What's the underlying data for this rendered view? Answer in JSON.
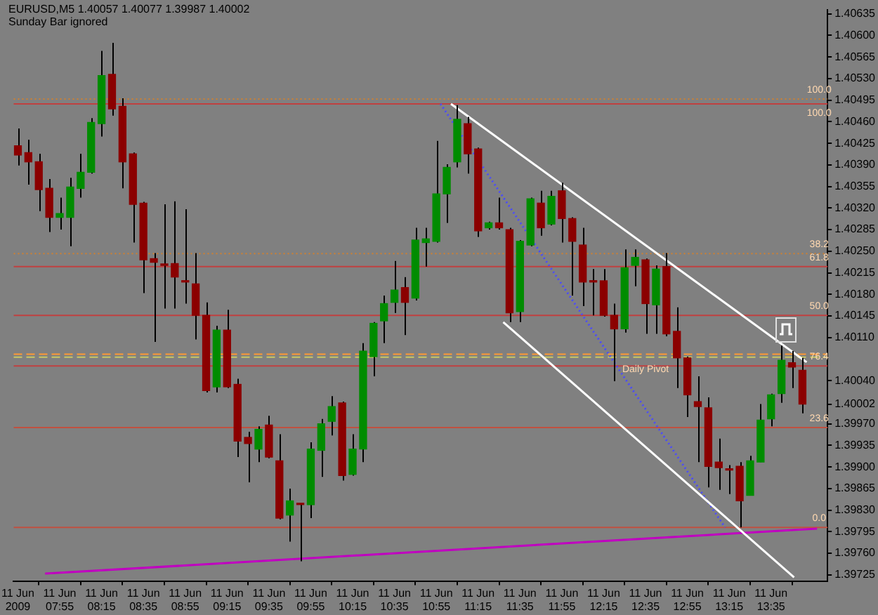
{
  "chart_data": {
    "type": "candlestick",
    "title": "EURUSD,M5  1.40057 1.40077 1.39987 1.40002",
    "subtitle": "Sunday Bar ignored",
    "x": [
      "2009-06-11T07:35",
      "2009-06-11T07:40",
      "2009-06-11T07:45",
      "2009-06-11T07:50",
      "2009-06-11T07:55",
      "2009-06-11T08:00",
      "2009-06-11T08:05",
      "2009-06-11T08:10",
      "2009-06-11T08:15",
      "2009-06-11T08:20",
      "2009-06-11T08:25",
      "2009-06-11T08:30",
      "2009-06-11T08:35",
      "2009-06-11T08:40",
      "2009-06-11T08:45",
      "2009-06-11T08:50",
      "2009-06-11T08:55",
      "2009-06-11T09:00",
      "2009-06-11T09:05",
      "2009-06-11T09:10",
      "2009-06-11T09:15",
      "2009-06-11T09:20",
      "2009-06-11T09:25",
      "2009-06-11T09:30",
      "2009-06-11T09:35",
      "2009-06-11T09:40",
      "2009-06-11T09:45",
      "2009-06-11T09:50",
      "2009-06-11T09:55",
      "2009-06-11T10:00",
      "2009-06-11T10:05",
      "2009-06-11T10:10",
      "2009-06-11T10:15",
      "2009-06-11T10:20",
      "2009-06-11T10:25",
      "2009-06-11T10:30",
      "2009-06-11T10:35",
      "2009-06-11T10:40",
      "2009-06-11T10:45",
      "2009-06-11T10:50",
      "2009-06-11T10:55",
      "2009-06-11T11:00",
      "2009-06-11T11:05",
      "2009-06-11T11:10",
      "2009-06-11T11:15",
      "2009-06-11T11:20",
      "2009-06-11T11:25",
      "2009-06-11T11:30",
      "2009-06-11T11:35",
      "2009-06-11T11:40",
      "2009-06-11T11:45",
      "2009-06-11T11:50",
      "2009-06-11T11:55",
      "2009-06-11T12:00",
      "2009-06-11T12:05",
      "2009-06-11T12:10",
      "2009-06-11T12:15",
      "2009-06-11T12:20",
      "2009-06-11T12:25",
      "2009-06-11T12:30",
      "2009-06-11T12:35",
      "2009-06-11T12:40",
      "2009-06-11T12:45",
      "2009-06-11T12:50",
      "2009-06-11T12:55",
      "2009-06-11T13:00",
      "2009-06-11T13:05",
      "2009-06-11T13:10",
      "2009-06-11T13:15",
      "2009-06-11T13:20",
      "2009-06-11T13:25",
      "2009-06-11T13:30",
      "2009-06-11T13:35",
      "2009-06-11T13:40",
      "2009-06-11T13:45",
      "2009-06-11T13:50"
    ],
    "ohlc": [
      [
        1.40421,
        1.40449,
        1.40389,
        1.40406
      ],
      [
        1.4041,
        1.40431,
        1.40358,
        1.40395
      ],
      [
        1.40395,
        1.40408,
        1.40315,
        1.4035
      ],
      [
        1.40352,
        1.40367,
        1.40281,
        1.40305
      ],
      [
        1.40305,
        1.40337,
        1.40285,
        1.40311
      ],
      [
        1.40305,
        1.40369,
        1.40258,
        1.40354
      ],
      [
        1.40352,
        1.40408,
        1.40337,
        1.40378
      ],
      [
        1.40378,
        1.40466,
        1.40376,
        1.40459
      ],
      [
        1.40457,
        1.40575,
        1.40436,
        1.40535
      ],
      [
        1.40537,
        1.40588,
        1.4047,
        1.40481
      ],
      [
        1.40485,
        1.40498,
        1.40352,
        1.40395
      ],
      [
        1.40408,
        1.4041,
        1.40264,
        1.40326
      ],
      [
        1.40328,
        1.4033,
        1.40182,
        1.40236
      ],
      [
        1.40238,
        1.40247,
        1.40103,
        1.40232
      ],
      [
        1.40227,
        1.40326,
        1.40157,
        1.40227
      ],
      [
        1.4023,
        1.40331,
        1.40157,
        1.40208
      ],
      [
        1.402,
        1.40318,
        1.40165,
        1.402
      ],
      [
        1.40197,
        1.40247,
        1.40107,
        1.40146
      ],
      [
        1.40146,
        1.40167,
        1.40021,
        1.40024
      ],
      [
        1.4003,
        1.40129,
        1.40021,
        1.40122
      ],
      [
        1.40122,
        1.40155,
        1.40028,
        1.4003
      ],
      [
        1.40034,
        1.40043,
        1.39916,
        1.39942
      ],
      [
        1.39948,
        1.39957,
        1.39875,
        1.39938
      ],
      [
        1.39929,
        1.39966,
        1.39908,
        1.39961
      ],
      [
        1.39968,
        1.39983,
        1.39914,
        1.39916
      ],
      [
        1.3991,
        1.39953,
        1.39815,
        1.39817
      ],
      [
        1.39822,
        1.39865,
        1.39779,
        1.39845
      ],
      [
        1.39839,
        1.39841,
        1.39747,
        1.39839
      ],
      [
        1.39839,
        1.3994,
        1.39817,
        1.39929
      ],
      [
        1.39927,
        1.39978,
        1.39884,
        1.3997
      ],
      [
        1.39974,
        1.40015,
        1.39951,
        1.39998
      ],
      [
        1.40004,
        1.40006,
        1.39878,
        1.39886
      ],
      [
        1.39888,
        1.39953,
        1.39886,
        1.39929
      ],
      [
        1.39929,
        1.40101,
        1.39908,
        1.40088
      ],
      [
        1.40079,
        1.40135,
        1.40047,
        1.40133
      ],
      [
        1.40137,
        1.40178,
        1.40101,
        1.40165
      ],
      [
        1.40167,
        1.40234,
        1.4015,
        1.40187
      ],
      [
        1.40191,
        1.40208,
        1.40114,
        1.40167
      ],
      [
        1.40174,
        1.40288,
        1.4017,
        1.40268
      ],
      [
        1.40264,
        1.40288,
        1.40225,
        1.4027
      ],
      [
        1.40266,
        1.40429,
        1.40264,
        1.40343
      ],
      [
        1.40343,
        1.40391,
        1.40296,
        1.40386
      ],
      [
        1.40395,
        1.40487,
        1.40386,
        1.40464
      ],
      [
        1.40457,
        1.40468,
        1.40376,
        1.40408
      ],
      [
        1.40416,
        1.40418,
        1.40273,
        1.40283
      ],
      [
        1.40288,
        1.40298,
        1.40285,
        1.40296
      ],
      [
        1.40296,
        1.40337,
        1.40285,
        1.40288
      ],
      [
        1.40285,
        1.40288,
        1.40135,
        1.4015
      ],
      [
        1.40152,
        1.40268,
        1.40135,
        1.40266
      ],
      [
        1.4026,
        1.40337,
        1.40258,
        1.40335
      ],
      [
        1.40328,
        1.40348,
        1.40275,
        1.40288
      ],
      [
        1.40294,
        1.40348,
        1.40292,
        1.40339
      ],
      [
        1.40348,
        1.40361,
        1.40264,
        1.40303
      ],
      [
        1.40303,
        1.40305,
        1.40178,
        1.40266
      ],
      [
        1.4026,
        1.40288,
        1.40161,
        1.402
      ],
      [
        1.402,
        1.40221,
        1.40146,
        1.402
      ],
      [
        1.40202,
        1.40221,
        1.40144,
        1.40146
      ],
      [
        1.40146,
        1.40165,
        1.40039,
        1.40124
      ],
      [
        1.40124,
        1.40253,
        1.40118,
        1.40223
      ],
      [
        1.40227,
        1.40253,
        1.40193,
        1.4024
      ],
      [
        1.40236,
        1.40238,
        1.40116,
        1.40165
      ],
      [
        1.40163,
        1.40227,
        1.40116,
        1.40221
      ],
      [
        1.40225,
        1.40247,
        1.40112,
        1.40116
      ],
      [
        1.4012,
        1.40159,
        1.40028,
        1.40077
      ],
      [
        1.40077,
        1.40079,
        1.39981,
        1.40017
      ],
      [
        1.40006,
        1.40047,
        1.39908,
        1.39998
      ],
      [
        1.39996,
        1.40013,
        1.39867,
        1.39901
      ],
      [
        1.39908,
        1.39946,
        1.39863,
        1.39899
      ],
      [
        1.39895,
        1.39903,
        1.39856,
        1.39895
      ],
      [
        1.39901,
        1.39908,
        1.39802,
        1.39845
      ],
      [
        1.39854,
        1.39918,
        1.39854,
        1.3991
      ],
      [
        1.39908,
        1.40002,
        1.39908,
        1.39976
      ],
      [
        1.39978,
        1.40019,
        1.39966,
        1.40017
      ],
      [
        1.40019,
        1.40097,
        1.40004,
        1.40073
      ],
      [
        1.40069,
        1.40088,
        1.40028,
        1.40062
      ],
      [
        1.40057,
        1.40077,
        1.39987,
        1.40002
      ]
    ],
    "colors": [
      "#8b0000",
      "#8b0000",
      "#8b0000",
      "#8b0000",
      "#008c00",
      "#008c00",
      "#008c00",
      "#008c00",
      "#008c00",
      "#8b0000",
      "#8b0000",
      "#8b0000",
      "#8b0000",
      "#8b0000",
      "#8b0000",
      "#8b0000",
      "#8b0000",
      "#8b0000",
      "#8b0000",
      "#008c00",
      "#8b0000",
      "#8b0000",
      "#8b0000",
      "#008c00",
      "#8b0000",
      "#8b0000",
      "#008c00",
      "#8b0000",
      "#008c00",
      "#008c00",
      "#008c00",
      "#8b0000",
      "#008c00",
      "#008c00",
      "#008c00",
      "#008c00",
      "#008c00",
      "#8b0000",
      "#008c00",
      "#008c00",
      "#008c00",
      "#008c00",
      "#008c00",
      "#8b0000",
      "#8b0000",
      "#008c00",
      "#8b0000",
      "#8b0000",
      "#008c00",
      "#008c00",
      "#8b0000",
      "#008c00",
      "#8b0000",
      "#8b0000",
      "#8b0000",
      "#8b0000",
      "#8b0000",
      "#8b0000",
      "#008c00",
      "#008c00",
      "#8b0000",
      "#008c00",
      "#8b0000",
      "#8b0000",
      "#8b0000",
      "#8b0000",
      "#8b0000",
      "#8b0000",
      "#8b0000",
      "#8b0000",
      "#008c00",
      "#008c00",
      "#008c00",
      "#008c00",
      "#8b0000",
      "#8b0000"
    ],
    "series": [
      {
        "type": "line",
        "x": [
          "2009-06-11T11:02",
          "2009-06-11T13:52"
        ],
        "values": [
          1.40489,
          1.4007
        ],
        "color": "#ffffff"
      },
      {
        "type": "line",
        "x": [
          "2009-06-11T11:27",
          "2009-06-11T13:46"
        ],
        "values": [
          1.40135,
          1.39721
        ],
        "color": "#ffffff"
      },
      {
        "type": "line",
        "x": [
          "2009-06-11T07:48",
          "2009-06-11T13:57"
        ],
        "values": [
          1.39727,
          1.398
        ],
        "color": "#c000c0"
      },
      {
        "type": "line",
        "x": [
          "2009-06-11T10:57",
          "2009-06-11T13:13"
        ],
        "values": [
          1.40489,
          1.39802
        ],
        "color": "#4a4aff",
        "line_style": "dotted"
      }
    ],
    "xlim": [
      "2009-06-11T07:33",
      "2009-06-11T14:02"
    ],
    "xticks": [
      {
        "value": "2009-06-11T07:35",
        "label": "11 Jun 2009"
      },
      {
        "value": "2009-06-11T07:55",
        "label": "11 Jun 07:55"
      },
      {
        "value": "2009-06-11T08:15",
        "label": "11 Jun 08:15"
      },
      {
        "value": "2009-06-11T08:35",
        "label": "11 Jun 08:35"
      },
      {
        "value": "2009-06-11T08:55",
        "label": "11 Jun 08:55"
      },
      {
        "value": "2009-06-11T09:15",
        "label": "11 Jun 09:15"
      },
      {
        "value": "2009-06-11T09:35",
        "label": "11 Jun 09:35"
      },
      {
        "value": "2009-06-11T09:55",
        "label": "11 Jun 09:55"
      },
      {
        "value": "2009-06-11T10:15",
        "label": "11 Jun 10:15"
      },
      {
        "value": "2009-06-11T10:35",
        "label": "11 Jun 10:35"
      },
      {
        "value": "2009-06-11T10:55",
        "label": "11 Jun 10:55"
      },
      {
        "value": "2009-06-11T11:15",
        "label": "11 Jun 11:15"
      },
      {
        "value": "2009-06-11T11:35",
        "label": "11 Jun 11:35"
      },
      {
        "value": "2009-06-11T11:55",
        "label": "11 Jun 11:55"
      },
      {
        "value": "2009-06-11T12:15",
        "label": "11 Jun 12:15"
      },
      {
        "value": "2009-06-11T12:35",
        "label": "11 Jun 12:35"
      },
      {
        "value": "2009-06-11T12:55",
        "label": "11 Jun 12:55"
      },
      {
        "value": "2009-06-11T13:15",
        "label": "11 Jun 13:15"
      },
      {
        "value": "2009-06-11T13:35",
        "label": "11 Jun 13:35"
      }
    ],
    "ylim": [
      1.39715,
      1.40642
    ],
    "yticks": [
      1.39725,
      {
        "value": 1.3976,
        "label": "1.39760"
      },
      1.39795,
      {
        "value": 1.3983,
        "label": "1.39830"
      },
      1.39865,
      {
        "value": 1.399,
        "label": "1.39900"
      },
      1.39935,
      {
        "value": 1.3997,
        "label": "1.39970"
      },
      1.40002,
      {
        "value": 1.4004,
        "label": "1.40040"
      },
      {
        "value": 1.4011,
        "label": "1.40110"
      },
      1.40145,
      {
        "value": 1.4018,
        "label": "1.40180"
      },
      1.40215,
      {
        "value": 1.4025,
        "label": "1.40250"
      },
      1.40285,
      {
        "value": 1.4032,
        "label": "1.40320"
      },
      1.40355,
      {
        "value": 1.4039,
        "label": "1.40390"
      },
      1.40425,
      {
        "value": 1.4046,
        "label": "1.40460"
      },
      1.40495,
      {
        "value": 1.4053,
        "label": "1.40530"
      },
      1.40565,
      {
        "value": 1.406,
        "label": "1.40600"
      },
      1.40635
    ],
    "ref_lines": [
      {
        "axis": "y",
        "value": 1.40497,
        "color": "#d08030",
        "line_style": "dotted"
      },
      {
        "axis": "y",
        "value": 1.40489,
        "color": "#c04040",
        "line_style": "solid"
      },
      {
        "axis": "y",
        "value": 1.40246,
        "color": "#d08030",
        "line_style": "dotted"
      },
      {
        "axis": "y",
        "value": 1.40225,
        "color": "#c04040",
        "line_style": "solid"
      },
      {
        "axis": "y",
        "value": 1.40146,
        "color": "#c04040",
        "line_style": "solid"
      },
      {
        "axis": "y",
        "value": 1.40083,
        "color": "#ff9933",
        "line_style": "dashed"
      },
      {
        "axis": "y",
        "value": 1.40078,
        "color": "#c8c864",
        "line_style": "dashed"
      },
      {
        "axis": "y",
        "value": 1.40064,
        "color": "#c04040",
        "line_style": "solid"
      },
      {
        "axis": "y",
        "value": 1.39964,
        "color": "#c05040",
        "line_style": "solid"
      },
      {
        "axis": "y",
        "value": 1.39802,
        "color": "#c05040",
        "line_style": "solid"
      }
    ],
    "annotations": [
      {
        "text": "100.0",
        "x": "2009-06-11T13:58",
        "y": 1.40497
      },
      {
        "text": "100.0",
        "x": "2009-06-11T13:58",
        "y": 1.40489
      },
      {
        "text": "38.2",
        "x": "2009-06-11T13:58",
        "y": 1.40246
      },
      {
        "text": "61.8",
        "x": "2009-06-11T13:58",
        "y": 1.40225
      },
      {
        "text": "50.0",
        "x": "2009-06-11T13:58",
        "y": 1.40146
      },
      {
        "text": "Daily Pivot",
        "x": "2009-06-11T12:35",
        "y": 1.40078
      },
      {
        "text": "76.4",
        "x": "2009-06-11T13:58",
        "y": 1.40064
      },
      {
        "text": "23.6",
        "x": "2009-06-11T13:58",
        "y": 1.39964
      },
      {
        "text": "0.0",
        "x": "2009-06-11T13:58",
        "y": 1.39802
      }
    ]
  }
}
